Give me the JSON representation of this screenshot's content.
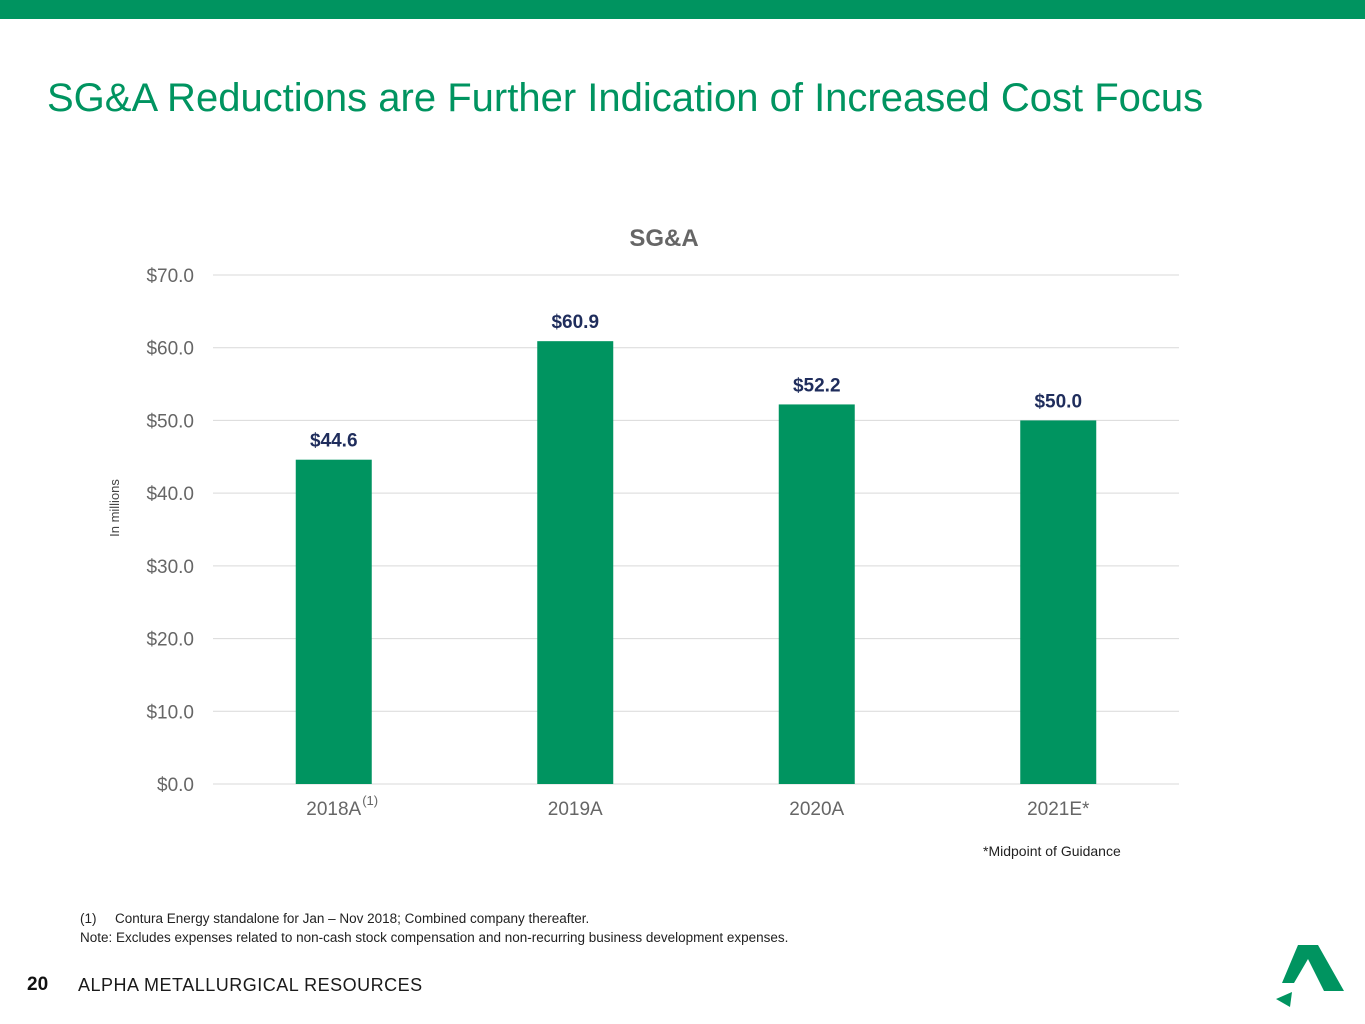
{
  "slide": {
    "title": "SG&A Reductions are Further Indication of Increased Cost Focus",
    "page_number": "20",
    "company_name": "ALPHA METALLURGICAL RESOURCES",
    "logo": "alpha-logo-icon",
    "accent_color": "#009460"
  },
  "chart_data": {
    "type": "bar",
    "title": "SG&A",
    "categories": [
      "2018A",
      "2019A",
      "2020A",
      "2021E*"
    ],
    "category_superscripts": [
      "(1)",
      "",
      "",
      ""
    ],
    "values": [
      44.6,
      60.9,
      52.2,
      50.0
    ],
    "data_labels": [
      "$44.6",
      "$60.9",
      "$52.2",
      "$50.0"
    ],
    "yticks": [
      0,
      10,
      20,
      30,
      40,
      50,
      60,
      70
    ],
    "ytick_labels": [
      "$0.0",
      "$10.0",
      "$20.0",
      "$30.0",
      "$40.0",
      "$50.0",
      "$60.0",
      "$70.0"
    ],
    "ylim": [
      0,
      70
    ],
    "xlabel": "",
    "ylabel": "In millions",
    "grid": true,
    "bar_color": "#009460",
    "label_color": "#1f2d5c"
  },
  "annotation": "*Midpoint of Guidance",
  "footnotes": [
    {
      "marker": "(1)",
      "text": "Contura Energy standalone for Jan – Nov 2018; Combined company thereafter."
    },
    {
      "marker": "",
      "text": "Note: Excludes expenses related to non-cash stock compensation and non-recurring business development expenses."
    }
  ]
}
